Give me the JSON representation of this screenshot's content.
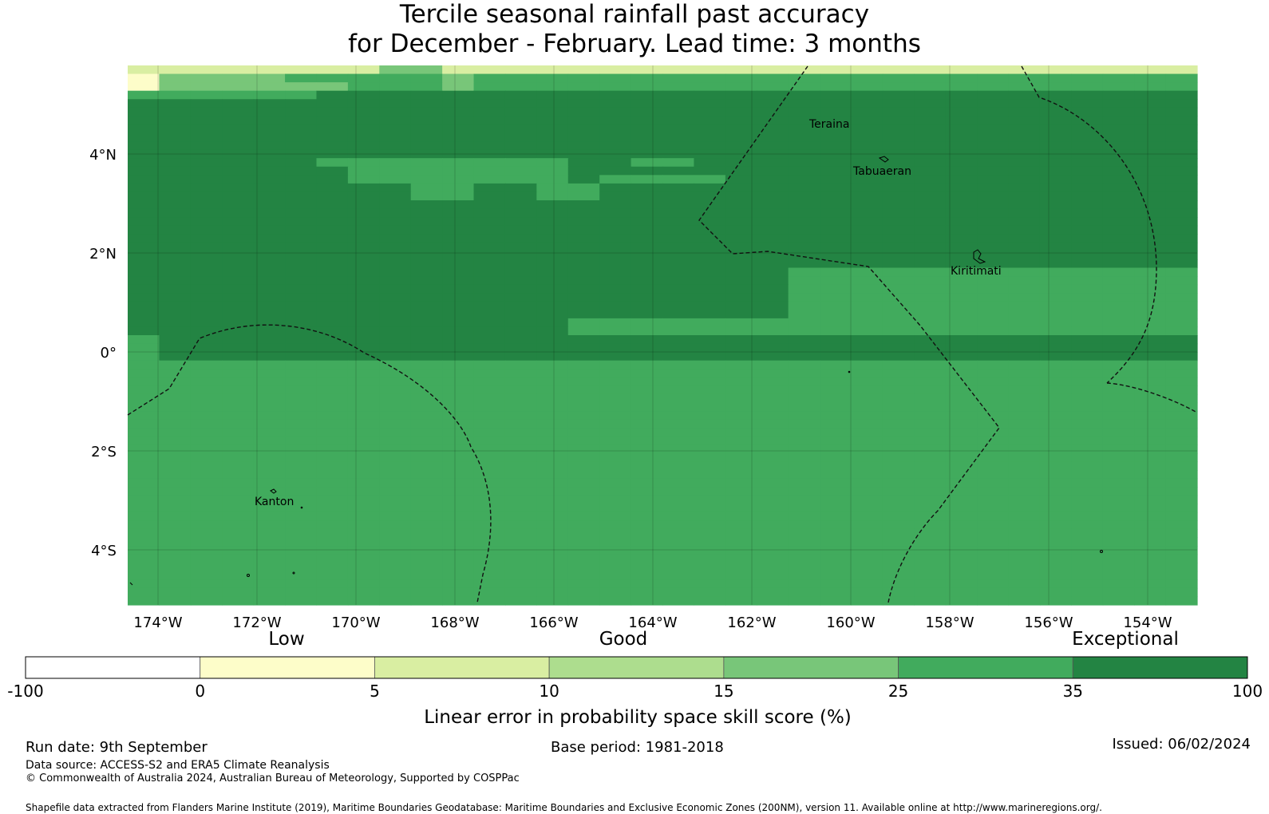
{
  "title_line1": "Tercile seasonal rainfall past accuracy",
  "title_line2": "for December - February. Lead time: 3 months",
  "map": {
    "lon_ticks": [
      "174°W",
      "172°W",
      "170°W",
      "168°W",
      "166°W",
      "164°W",
      "162°W",
      "160°W",
      "158°W",
      "156°W",
      "154°W"
    ],
    "lat_ticks": [
      "4°N",
      "2°N",
      "0°",
      "2°S",
      "4°S"
    ],
    "places": [
      "Teraina",
      "Tabuaeran",
      "Kiritimati",
      "Kanton"
    ],
    "grid": [
      "4444444422444444444444444444444444",
      "5222211111211111111111111111111111",
      "5222222111211111111111111111111111",
      "1111110000000000000000000000000000",
      "0000000000000000000000000000000000",
      "0000000000000000000000000000000000",
      "0000000000000000000000000000000000",
      "0000000000000000000000000000000000",
      "0000000000000000000000000000000000",
      "0000000000000000000000000000000000",
      "0000000000000000000000000000000000",
      "0000001111111100110000000000000000",
      "0000000111111100000000000000000000",
      "0000000111111101111000000000000000",
      "0000000001100110000000000000000000",
      "0000000001100110000000000000000000",
      "0000000000000000000000000000000000",
      "0000000000000000000000000000000000",
      "0000000000000000000000000000000000",
      "0000000000000000000000000000000000",
      "0000000000000000000000000000000000",
      "0000000000000000000000000000000000",
      "0000000000000000000000000000000000",
      "0000000000000000000000000000000000",
      "0000000000000000000001111111111111",
      "0000000000000000000001111111111111",
      "0000000000000000000001111111111111",
      "0000000000000000000001111111111111",
      "0000000000000000000001111111111111",
      "0000000000000000000001111111111111",
      "0000000000000011111111111111111111",
      "0000000000000011111111111111111111",
      "1000000000000000000000000000000000",
      "1000000000000000000000000000000000",
      "1000000000000000000000000000000000",
      "1111111111111111111111111111111111",
      "1111111111111111111111111111111111",
      "1111111111111111111111111111111111",
      "1111111111111111111111111111111111",
      "1111111111111111111111111111111111",
      "1111111111111111111111111111111111",
      "1111111111111111111111111111111111",
      "1111111111111111111111111111111111",
      "1111111111111111111111111111111111",
      "1111111111111111111111111111111111",
      "1111111111111111111111111111111111",
      "1111111111111111111111111111111111",
      "1111111111111111111111111111111111",
      "1111111111111111111111111111111111",
      "1111111111111111111111111111111111",
      "1111111111111111111111111111111111",
      "1111111111111111111111111111111111",
      "1111111111111111111111111111111111",
      "1111111111111111111111111111111111",
      "1111111111111111111111111111111111",
      "1111111111111111111111111111111111",
      "1111111111111111111111111111111111",
      "1111111111111111111111111111111111",
      "1111111111111111111111111111111111",
      "1111111111111111111111111111111111",
      "1111111111111111111111111111111111",
      "1111111111111111111111111111111111",
      "1111111111111111111111111111111111",
      "1111111111111111111111111111111111"
    ]
  },
  "colorbar": {
    "category_labels": [
      "Low",
      "Good",
      "Exceptional"
    ],
    "boundaries": [
      "-100",
      "0",
      "5",
      "10",
      "15",
      "25",
      "35",
      "100"
    ],
    "colors": [
      "#ffffff",
      "#fdfdc9",
      "#d9eea2",
      "#addd8e",
      "#78c679",
      "#41ab5d",
      "#238443"
    ],
    "label": "Linear error in probability space skill score (%)"
  },
  "footer": {
    "run_date": "Run date: 9th September",
    "base_period": "Base period: 1981-2018",
    "issued": "Issued: 06/02/2024",
    "data_source": "Data source: ACCESS-S2 and ERA5 Climate Reanalysis",
    "copyright": "© Commonwealth of Australia 2024, Australian Bureau of Meteorology, Supported by COSPPac",
    "shapefile": "Shapefile data extracted from Flanders Marine Institute (2019), Maritime Boundaries Geodatabase: Maritime Boundaries and Exclusive Economic Zones (200NM), version 11. Available online at http://www.marineregions.org/."
  }
}
